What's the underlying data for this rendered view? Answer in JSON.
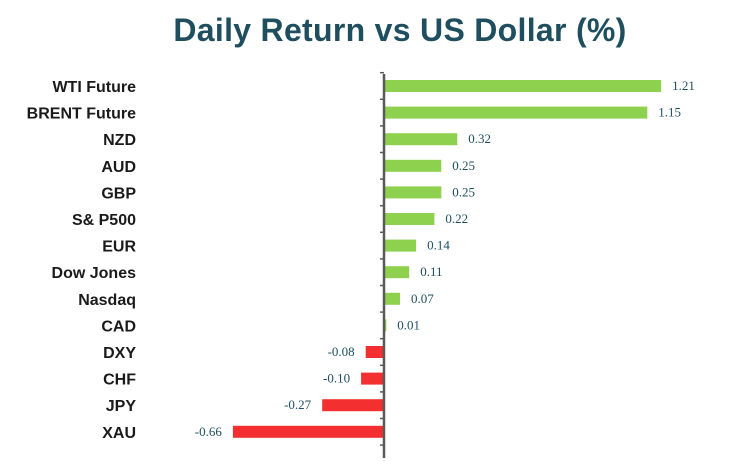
{
  "chart_data": {
    "type": "bar",
    "orientation": "horizontal",
    "title": "Daily Return vs US Dollar (%)",
    "categories": [
      "WTI Future",
      "BRENT Future",
      "NZD",
      "AUD",
      "GBP",
      "S& P500",
      "EUR",
      "Dow Jones",
      "Nasdaq",
      "CAD",
      "DXY",
      "CHF",
      "JPY",
      "XAU"
    ],
    "values": [
      1.21,
      1.15,
      0.32,
      0.25,
      0.25,
      0.22,
      0.14,
      0.11,
      0.07,
      0.01,
      -0.08,
      -0.1,
      -0.27,
      -0.66
    ],
    "value_labels": [
      "1.21",
      "1.15",
      "0.32",
      "0.25",
      "0.25",
      "0.22",
      "0.14",
      "0.11",
      "0.07",
      "0.01",
      "-0.08",
      "-0.10",
      "-0.27",
      "-0.66"
    ],
    "xlim": [
      -0.66,
      1.21
    ],
    "grid": false,
    "legend": "none",
    "colors": {
      "positive": "#8ed14f",
      "negative": "#f42f2f",
      "axis": "#595959",
      "labels": "#1f4e5f"
    }
  }
}
